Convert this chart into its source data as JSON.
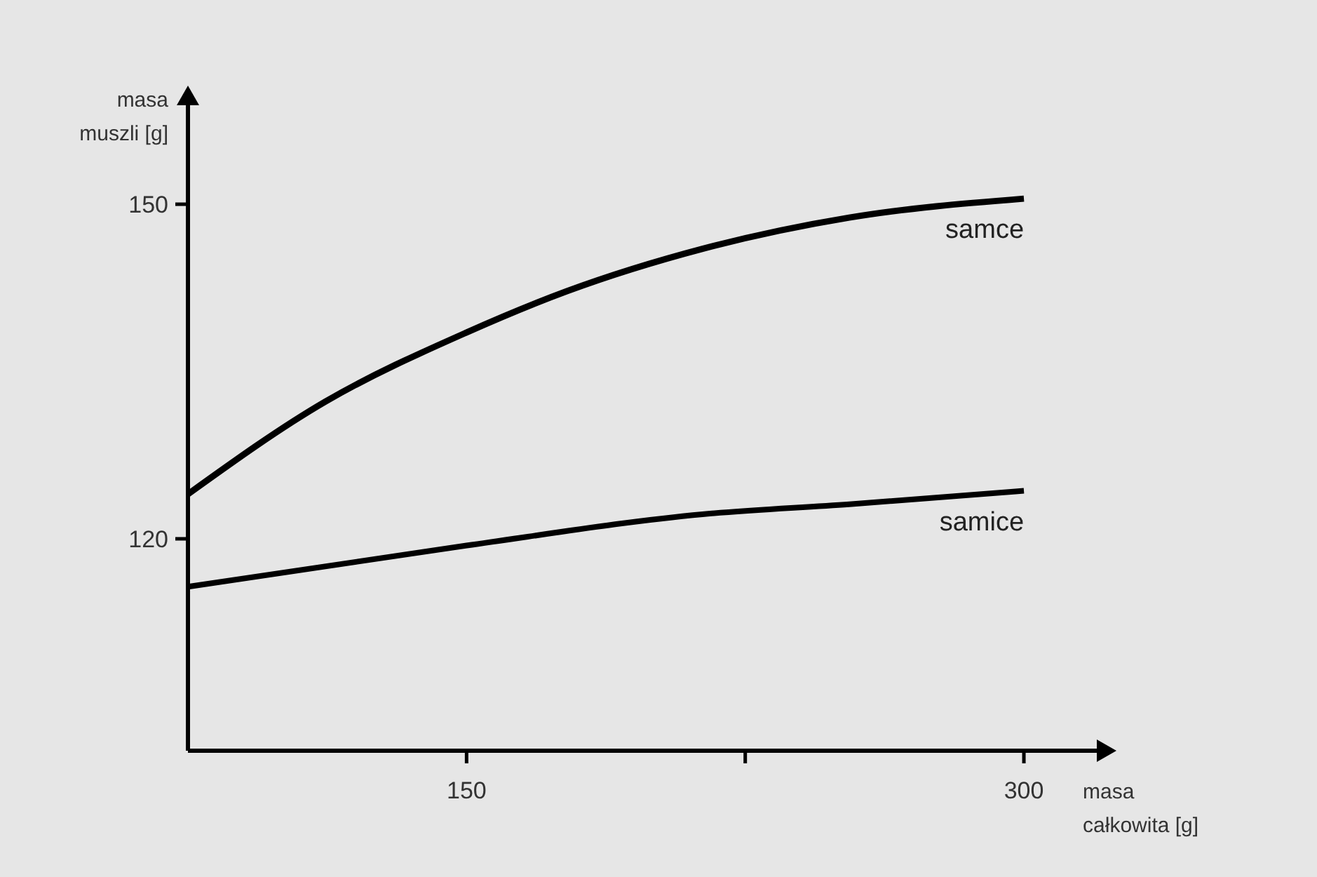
{
  "chart_data": {
    "type": "line",
    "xlabel": "masa\ncałkowita [g]",
    "ylabel": "masa\nmuszli [g]",
    "xlim": [
      75,
      320
    ],
    "ylim": [
      101,
      159
    ],
    "xticks": [
      150,
      {
        "value": 225,
        "label": null
      },
      300
    ],
    "yticks": [
      120,
      150
    ],
    "series": [
      {
        "name": "samce",
        "color": "#000000",
        "x": [
          75,
          112,
          150,
          177,
          213.5,
          253,
          300
        ],
        "values": [
          124.0,
          132.3,
          138.5,
          142.2,
          146.0,
          148.8,
          150.5
        ]
      },
      {
        "name": "samice",
        "color": "#000000",
        "x": [
          75,
          150,
          213.5,
          253,
          300
        ],
        "values": [
          115.7,
          119.4,
          122.2,
          123.1,
          124.3
        ]
      }
    ]
  }
}
